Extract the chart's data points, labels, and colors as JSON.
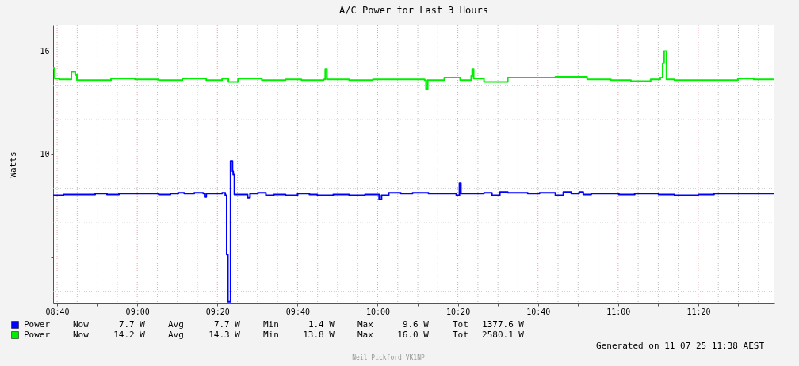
{
  "chart_data": {
    "type": "step",
    "title": "A/C Power for Last 3 Hours",
    "ylabel": "Watts",
    "xlim": [
      8.65,
      11.65
    ],
    "ylim": [
      1.3,
      17.5
    ],
    "xticks": [
      {
        "value": 8.6667,
        "label": "08:40"
      },
      {
        "value": 8.75,
        "label": null
      },
      {
        "value": 8.8333,
        "label": null
      },
      {
        "value": 8.9167,
        "label": null
      },
      {
        "value": 9.0,
        "label": "09:00"
      },
      {
        "value": 9.0833,
        "label": null
      },
      {
        "value": 9.1667,
        "label": null
      },
      {
        "value": 9.25,
        "label": null
      },
      {
        "value": 9.3333,
        "label": "09:20"
      },
      {
        "value": 9.4167,
        "label": null
      },
      {
        "value": 9.5,
        "label": null
      },
      {
        "value": 9.5833,
        "label": null
      },
      {
        "value": 9.6667,
        "label": "09:40"
      },
      {
        "value": 9.75,
        "label": null
      },
      {
        "value": 9.8333,
        "label": null
      },
      {
        "value": 9.9167,
        "label": null
      },
      {
        "value": 10.0,
        "label": "10:00"
      },
      {
        "value": 10.0833,
        "label": null
      },
      {
        "value": 10.1667,
        "label": null
      },
      {
        "value": 10.25,
        "label": null
      },
      {
        "value": 10.3333,
        "label": "10:20"
      },
      {
        "value": 10.4167,
        "label": null
      },
      {
        "value": 10.5,
        "label": null
      },
      {
        "value": 10.5833,
        "label": null
      },
      {
        "value": 10.6667,
        "label": "10:40"
      },
      {
        "value": 10.75,
        "label": null
      },
      {
        "value": 10.8333,
        "label": null
      },
      {
        "value": 10.9167,
        "label": null
      },
      {
        "value": 11.0,
        "label": "11:00"
      },
      {
        "value": 11.0833,
        "label": null
      },
      {
        "value": 11.1667,
        "label": null
      },
      {
        "value": 11.25,
        "label": null
      },
      {
        "value": 11.3333,
        "label": "11:20"
      },
      {
        "value": 11.4167,
        "label": null
      },
      {
        "value": 11.5,
        "label": null
      },
      {
        "value": 11.5833,
        "label": null
      }
    ],
    "yticks": [
      {
        "value": 2,
        "label": null
      },
      {
        "value": 4,
        "label": null
      },
      {
        "value": 6,
        "label": null
      },
      {
        "value": 8,
        "label": null
      },
      10,
      {
        "value": 12,
        "label": null
      },
      {
        "value": 14,
        "label": null
      },
      16
    ],
    "grid": true,
    "legend": "bottom",
    "line_style": "solid",
    "series": [
      {
        "name": "Power",
        "color": "#0000ff",
        "x": [
          8.65,
          8.693,
          8.759,
          8.825,
          8.874,
          8.924,
          8.99,
          9.056,
          9.089,
          9.138,
          9.171,
          9.195,
          9.237,
          9.274,
          9.28,
          9.287,
          9.353,
          9.366,
          9.372,
          9.377,
          9.383,
          9.388,
          9.393,
          9.396,
          9.399,
          9.404,
          9.436,
          9.459,
          9.469,
          9.502,
          9.535,
          9.568,
          9.617,
          9.667,
          9.716,
          9.749,
          9.815,
          9.881,
          9.947,
          10.0,
          10.006,
          10.016,
          10.046,
          10.096,
          10.145,
          10.211,
          10.277,
          10.327,
          10.34,
          10.346,
          10.393,
          10.442,
          10.475,
          10.508,
          10.541,
          10.591,
          10.624,
          10.673,
          10.739,
          10.772,
          10.805,
          10.838,
          10.855,
          10.888,
          10.937,
          11.003,
          11.069,
          11.168,
          11.234,
          11.333,
          11.399,
          11.498,
          11.564,
          11.647
        ],
        "values": [
          7.6,
          7.65,
          7.65,
          7.7,
          7.65,
          7.7,
          7.7,
          7.7,
          7.65,
          7.7,
          7.75,
          7.7,
          7.75,
          7.7,
          7.5,
          7.7,
          7.75,
          7.6,
          4.15,
          1.4,
          1.4,
          9.6,
          9.6,
          9.0,
          8.8,
          7.65,
          7.65,
          7.45,
          7.7,
          7.75,
          7.6,
          7.65,
          7.6,
          7.7,
          7.65,
          7.6,
          7.65,
          7.6,
          7.65,
          7.65,
          7.35,
          7.6,
          7.75,
          7.7,
          7.75,
          7.7,
          7.7,
          7.6,
          8.3,
          7.7,
          7.7,
          7.75,
          7.6,
          7.8,
          7.75,
          7.75,
          7.7,
          7.75,
          7.6,
          7.8,
          7.7,
          7.8,
          7.65,
          7.7,
          7.7,
          7.65,
          7.7,
          7.65,
          7.6,
          7.65,
          7.7,
          7.7,
          7.7,
          7.7
        ]
      },
      {
        "name": "Power",
        "color": "#00ee00",
        "x": [
          8.65,
          8.657,
          8.676,
          8.719,
          8.726,
          8.742,
          8.749,
          8.825,
          8.891,
          8.99,
          9.089,
          9.188,
          9.287,
          9.353,
          9.379,
          9.419,
          9.518,
          9.617,
          9.683,
          9.775,
          9.782,
          9.789,
          9.881,
          9.98,
          10.079,
          10.145,
          10.195,
          10.201,
          10.208,
          10.277,
          10.343,
          10.389,
          10.393,
          10.399,
          10.442,
          10.541,
          10.64,
          10.739,
          10.871,
          10.97,
          11.053,
          11.135,
          11.175,
          11.185,
          11.191,
          11.201,
          11.234,
          11.333,
          11.399,
          11.498,
          11.564,
          11.647
        ],
        "values": [
          15.0,
          14.4,
          14.35,
          14.35,
          14.8,
          14.6,
          14.3,
          14.3,
          14.4,
          14.35,
          14.3,
          14.4,
          14.3,
          14.4,
          14.2,
          14.4,
          14.3,
          14.35,
          14.3,
          14.35,
          14.95,
          14.35,
          14.3,
          14.35,
          14.35,
          14.35,
          14.3,
          13.8,
          14.3,
          14.45,
          14.3,
          14.55,
          14.95,
          14.4,
          14.2,
          14.45,
          14.45,
          14.5,
          14.35,
          14.3,
          14.25,
          14.35,
          14.45,
          15.3,
          16.0,
          14.35,
          14.3,
          14.3,
          14.3,
          14.4,
          14.35,
          14.3
        ]
      }
    ],
    "annotations": [
      "Now",
      "7.7 W",
      "Avg",
      "7.7 W",
      "Min",
      "1.4 W",
      "Max",
      "9.6 W",
      "Tot",
      "1377.6 W",
      "Now",
      "14.2 W",
      "Avg",
      "14.3 W",
      "Min",
      "13.8 W",
      "Max",
      "16.0 W",
      "Tot",
      "2580.1 W",
      "Generated on 11 07 25 11:38 AEST",
      "Neil Pickford VK1NP"
    ]
  }
}
